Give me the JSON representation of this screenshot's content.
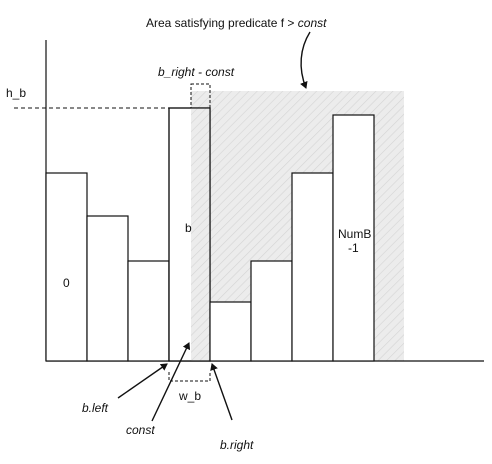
{
  "diagram": {
    "title_lead": "Area satisfying predicate",
    "title_f": "f >",
    "title_const": "const",
    "h_b": "h_b",
    "b_right_minus_const": "b_right - const",
    "b": "b",
    "zero": "0",
    "numb_line1": "NumB",
    "numb_line2": "-1",
    "w_b": "w_b",
    "b_left": "b.left",
    "const": "const",
    "b_right": "b.right",
    "colors": {
      "shade": "#ebebeb",
      "hatch": "#c9c9c9",
      "stroke": "#111111"
    }
  }
}
